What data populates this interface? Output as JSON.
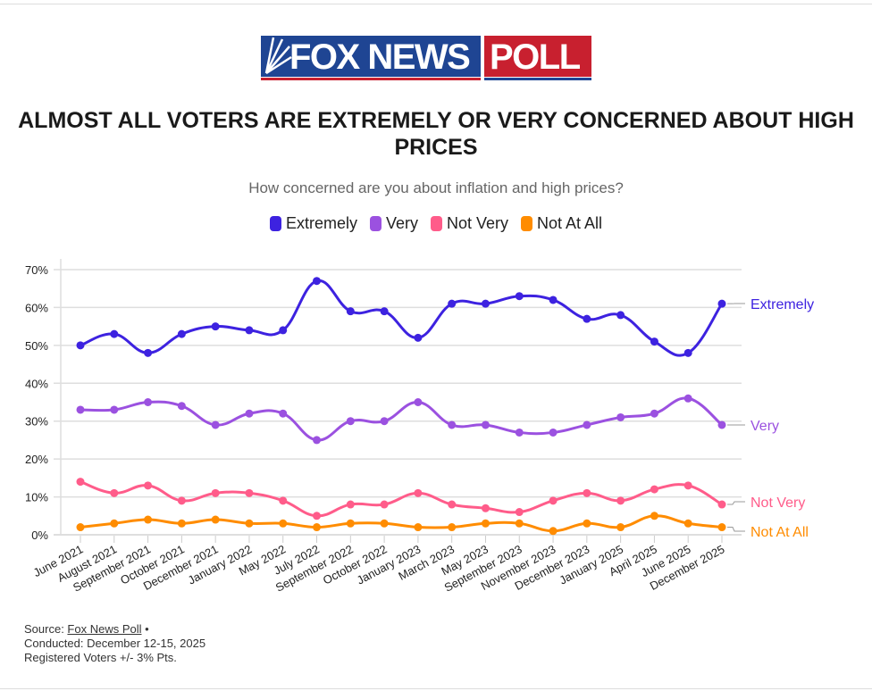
{
  "logo": {
    "text_left": "FOX NEWS",
    "text_right": "POLL"
  },
  "title": "ALMOST ALL VOTERS ARE EXTREMELY OR VERY CONCERNED ABOUT HIGH PRICES",
  "subtitle": "How concerned are you about inflation and high prices?",
  "footer": {
    "source_prefix": "Source: ",
    "source_link": "Fox News Poll",
    "source_suffix": " •",
    "conducted": "Conducted: December 12-15, 2025",
    "sample": "Registered Voters +/- 3% Pts."
  },
  "chart_data": {
    "type": "line",
    "title": "ALMOST ALL VOTERS ARE EXTREMELY OR VERY CONCERNED ABOUT HIGH PRICES",
    "xlabel": "",
    "ylabel": "",
    "ylim": [
      0,
      70
    ],
    "yticks": [
      0,
      10,
      20,
      30,
      40,
      50,
      60,
      70
    ],
    "ytick_labels": [
      "0%",
      "10%",
      "20%",
      "30%",
      "40%",
      "50%",
      "60%",
      "70%"
    ],
    "grid": true,
    "legend_position": "top-center",
    "categories": [
      "June 2021",
      "August 2021",
      "September 2021",
      "October 2021",
      "December 2021",
      "January 2022",
      "May 2022",
      "July 2022",
      "September 2022",
      "October 2022",
      "January 2023",
      "March 2023",
      "May 2023",
      "September 2023",
      "November 2023",
      "December 2023",
      "January 2025",
      "April 2025",
      "June 2025",
      "December 2025"
    ],
    "series": [
      {
        "name": "Extremely",
        "color": "#3d22e0",
        "values": [
          50,
          53,
          48,
          53,
          55,
          54,
          54,
          67,
          59,
          59,
          52,
          61,
          61,
          63,
          62,
          57,
          58,
          51,
          48,
          61
        ]
      },
      {
        "name": "Very",
        "color": "#9b51e0",
        "values": [
          33,
          33,
          35,
          34,
          29,
          32,
          32,
          25,
          30,
          30,
          35,
          29,
          29,
          27,
          27,
          29,
          31,
          32,
          36,
          29
        ]
      },
      {
        "name": "Not Very",
        "color": "#ff5c8a",
        "values": [
          14,
          11,
          13,
          9,
          11,
          11,
          9,
          5,
          8,
          8,
          11,
          8,
          7,
          6,
          9,
          11,
          9,
          12,
          13,
          8
        ]
      },
      {
        "name": "Not At All",
        "color": "#ff8c00",
        "values": [
          2,
          3,
          4,
          3,
          4,
          3,
          3,
          2,
          3,
          3,
          2,
          2,
          3,
          3,
          1,
          3,
          2,
          5,
          3,
          2
        ]
      }
    ]
  }
}
